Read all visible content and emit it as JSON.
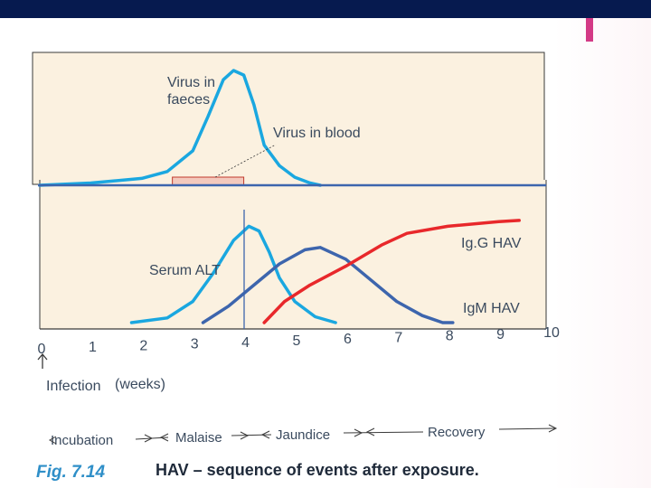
{
  "chart_data": {
    "type": "line",
    "figure_label": "Fig. 7.14",
    "title": "HAV – sequence of events after exposure.",
    "x_axis": {
      "ticks": [
        "0",
        "1",
        "2",
        "3",
        "4",
        "5",
        "6",
        "7",
        "8",
        "9",
        "10"
      ],
      "range": [
        0,
        10
      ],
      "unit_label": "(weeks)",
      "origin_label": "Infection"
    },
    "top_panel": {
      "series": [
        {
          "name": "Virus in faeces",
          "color": "#1aa7e0",
          "x": [
            0,
            1,
            2,
            2.5,
            3,
            3.3,
            3.6,
            3.8,
            4.0,
            4.2,
            4.4,
            4.7,
            5.0,
            5.3,
            5.5
          ],
          "y": [
            0.0,
            0.02,
            0.06,
            0.12,
            0.3,
            0.6,
            0.92,
            1.0,
            0.96,
            0.7,
            0.35,
            0.17,
            0.07,
            0.02,
            0.0
          ]
        }
      ],
      "bar": {
        "name": "Virus in blood",
        "x_start": 2.6,
        "x_end": 4.0,
        "color": "#f3c9bd"
      }
    },
    "bottom_panel": {
      "vline_x": 3.95,
      "series": [
        {
          "name": "Serum ALT",
          "color": "#1aa7e0",
          "x": [
            1.8,
            2.5,
            3.0,
            3.4,
            3.8,
            4.1,
            4.3,
            4.5,
            4.7,
            5.0,
            5.4,
            5.8
          ],
          "y": [
            0.0,
            0.04,
            0.18,
            0.42,
            0.7,
            0.82,
            0.78,
            0.6,
            0.38,
            0.18,
            0.05,
            0.0
          ]
        },
        {
          "name": "IgM HAV",
          "color": "#3d65ad",
          "x": [
            3.2,
            3.7,
            4.2,
            4.7,
            5.2,
            5.5,
            6.0,
            6.5,
            7.0,
            7.5,
            7.9,
            8.1
          ],
          "y": [
            0.0,
            0.14,
            0.32,
            0.5,
            0.62,
            0.64,
            0.54,
            0.36,
            0.18,
            0.06,
            0.0,
            0.0
          ]
        },
        {
          "name": "Ig.G HAV",
          "color": "#e8282b",
          "x": [
            4.4,
            4.8,
            5.3,
            6.0,
            6.7,
            7.2,
            8.0,
            9.0,
            9.4
          ],
          "y": [
            0.0,
            0.18,
            0.32,
            0.48,
            0.66,
            0.76,
            0.82,
            0.86,
            0.87
          ]
        }
      ]
    },
    "annotations": {
      "virus_in_faeces_line1": "Virus in",
      "virus_in_faeces_line2": "faeces",
      "virus_in_blood": "Virus in blood",
      "serum_alt": "Serum ALT",
      "igg": "Ig.G HAV",
      "igm": "IgM HAV"
    },
    "phases": [
      "Incubation",
      "Malaise",
      "Jaundice",
      "Recovery"
    ]
  }
}
